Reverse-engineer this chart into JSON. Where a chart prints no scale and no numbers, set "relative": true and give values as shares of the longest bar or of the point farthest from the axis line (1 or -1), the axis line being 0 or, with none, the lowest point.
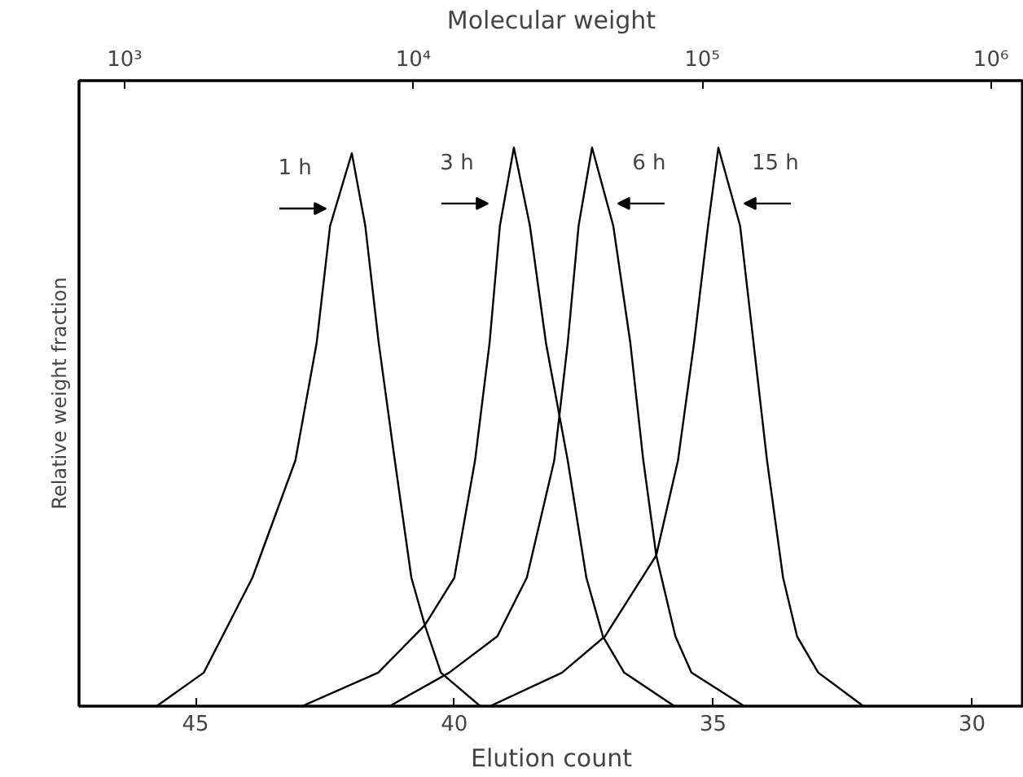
{
  "chart_data": {
    "type": "line",
    "xlabel": "Elution count",
    "ylabel": "Relative weight fraction",
    "x2label": "Molecular weight",
    "relative": true,
    "xlim": [
      47.25,
      29.0
    ],
    "xticks": [
      45,
      40,
      35,
      30
    ],
    "x2lim": [
      695,
      1300000
    ],
    "x2ticks": [
      {
        "value": 1000,
        "label": "10³"
      },
      {
        "value": 10000,
        "label": "10⁴"
      },
      {
        "value": 100000,
        "label": "10⁵"
      },
      {
        "value": 1000000,
        "label": "10⁶"
      }
    ],
    "log": "x2",
    "grid": false,
    "series": [
      {
        "name": "1 h",
        "color": "#000000",
        "x": [
          45.75,
          44.84,
          43.9,
          43.07,
          42.66,
          42.4,
          41.98,
          41.72,
          41.46,
          41.15,
          40.83,
          40.57,
          40.26,
          39.5
        ],
        "values": [
          0,
          0.06,
          0.23,
          0.44,
          0.65,
          0.86,
          0.99,
          0.86,
          0.65,
          0.44,
          0.23,
          0.145,
          0.06,
          0
        ]
      },
      {
        "name": "3 h",
        "color": "#000000",
        "x": [
          42.94,
          41.47,
          40.57,
          40.0,
          39.6,
          39.32,
          39.12,
          38.85,
          38.54,
          38.23,
          37.81,
          37.45,
          37.13,
          36.72,
          35.75
        ],
        "values": [
          0,
          0.06,
          0.145,
          0.23,
          0.44,
          0.65,
          0.86,
          1,
          0.86,
          0.65,
          0.44,
          0.23,
          0.125,
          0.06,
          0
        ]
      },
      {
        "name": "6 h",
        "color": "#000000",
        "x": [
          41.25,
          40.1,
          39.17,
          38.6,
          38.07,
          37.81,
          37.6,
          37.34,
          36.93,
          36.6,
          36.35,
          36.1,
          35.73,
          35.42,
          34.4
        ],
        "values": [
          0,
          0.06,
          0.125,
          0.23,
          0.44,
          0.65,
          0.86,
          1,
          0.86,
          0.65,
          0.44,
          0.27,
          0.125,
          0.06,
          0
        ]
      },
      {
        "name": "15 h",
        "color": "#000000",
        "x": [
          39.31,
          37.92,
          37.09,
          36.1,
          35.68,
          35.37,
          35.1,
          34.9,
          34.48,
          34.22,
          33.96,
          33.65,
          33.38,
          32.97,
          32.1
        ],
        "values": [
          0,
          0.06,
          0.125,
          0.27,
          0.44,
          0.65,
          0.86,
          1,
          0.86,
          0.65,
          0.44,
          0.23,
          0.125,
          0.06,
          0
        ]
      }
    ]
  }
}
